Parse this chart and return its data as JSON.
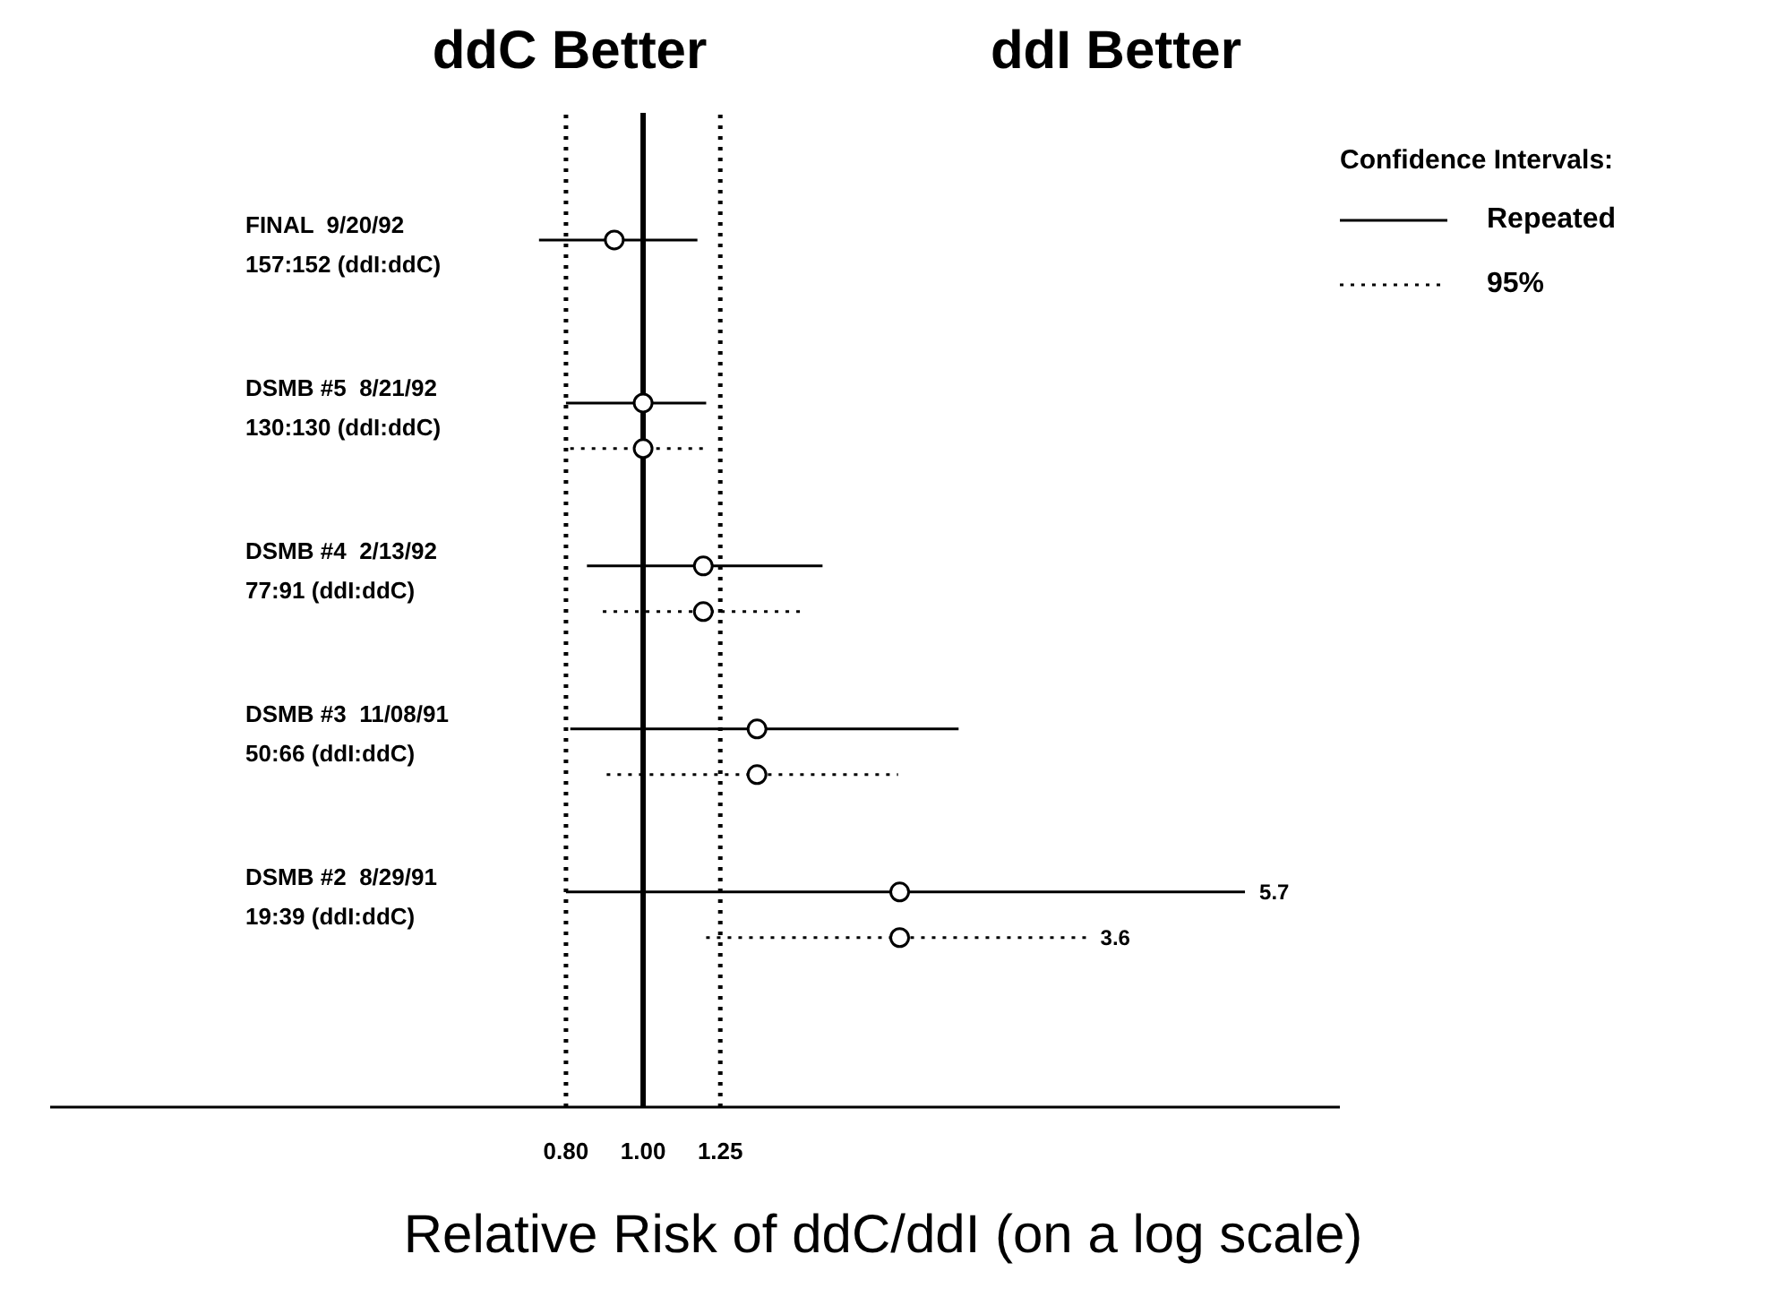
{
  "chart_data": {
    "type": "scatter",
    "orientation": "horizontal",
    "xlabel": "Relative Risk of ddC/ddI (on a log scale)",
    "categories": [
      "FINAL  9/20/92\n157:152 (ddI:ddC)",
      "DSMB #5  8/21/92\n130:130 (ddI:ddC)",
      "DSMB #4  2/13/92\n77:91 (ddI:ddC)",
      "DSMB #3  11/08/91\n50:66 (ddI:ddC)",
      "DSMB #2  8/29/91\n19:39 (ddI:ddC)"
    ],
    "series": [
      {
        "name": "Repeated",
        "color": "#000000",
        "line_style": "solid",
        "values": [
          0.92,
          1.0,
          1.19,
          1.39,
          2.1
        ],
        "errors": [
          [
            0.74,
            1.17
          ],
          [
            0.8,
            1.2
          ],
          [
            0.85,
            1.68
          ],
          [
            0.81,
            2.49
          ],
          [
            0.8,
            5.7
          ]
        ]
      },
      {
        "name": "95%",
        "color": "#000000",
        "line_style": "dotted",
        "values": [
          null,
          1.0,
          1.19,
          1.39,
          2.1
        ],
        "errors": [
          null,
          [
            0.81,
            1.2
          ],
          [
            0.89,
            1.59
          ],
          [
            0.9,
            2.09
          ],
          [
            1.2,
            3.6
          ]
        ]
      }
    ],
    "log": "x",
    "xlim": [
      0.18,
      7.5
    ],
    "xticks": [
      {
        "value": 0.8,
        "label": "0.80"
      },
      {
        "value": 1,
        "label": "1.00"
      },
      {
        "value": 1.25,
        "label": "1.25"
      }
    ],
    "ref_lines": [
      {
        "axis": "x",
        "value": 0.8,
        "line_style": "dotted"
      },
      {
        "axis": "x",
        "value": 1,
        "line_style": "solid"
      },
      {
        "axis": "x",
        "value": 1.25,
        "line_style": "dotted"
      }
    ],
    "legend": "top right",
    "legend_title": "Confidence Intervals:",
    "marker": "circle",
    "grid": false,
    "annotations": [
      "ddC Better",
      "ddI Better",
      "5.7",
      "3.6"
    ]
  }
}
